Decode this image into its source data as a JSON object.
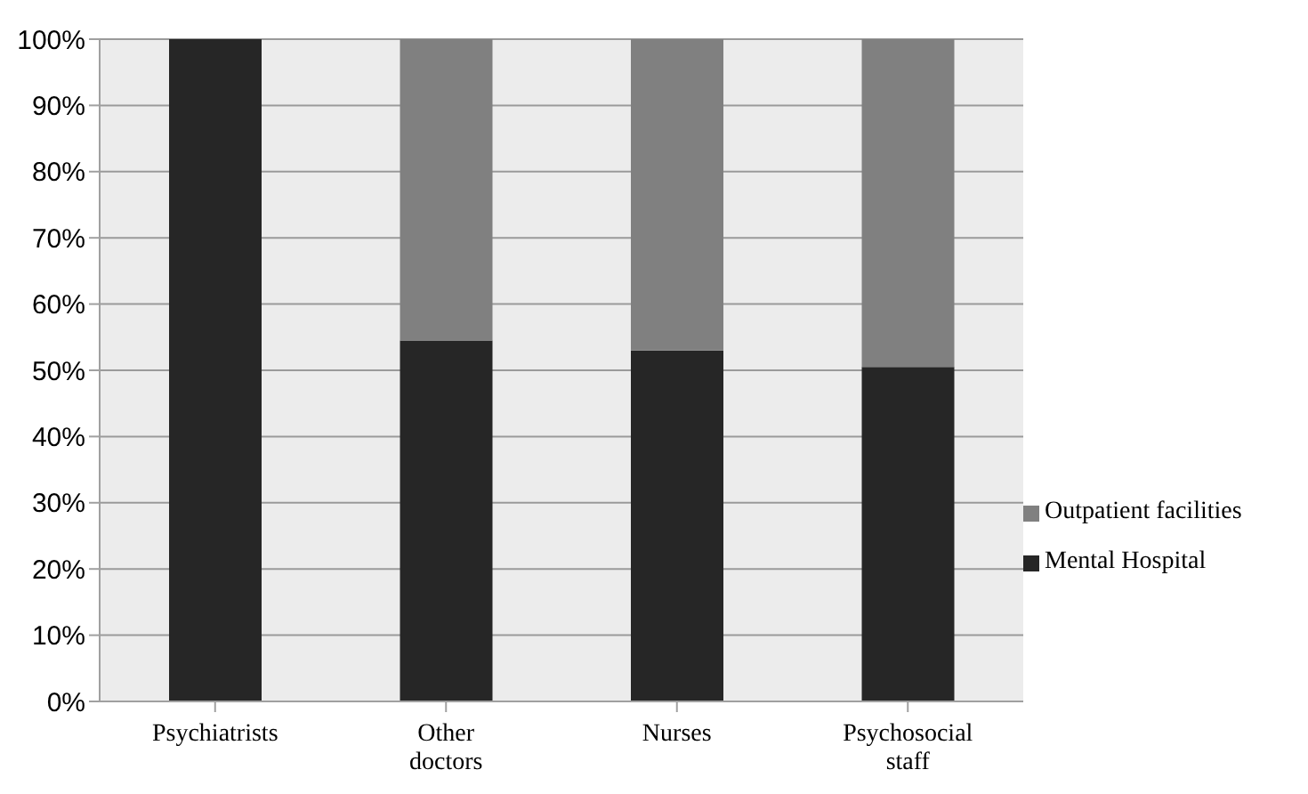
{
  "chart_data": {
    "type": "bar",
    "stacked": true,
    "categories": [
      "Psychiatrists",
      "Other doctors",
      "Nurses",
      "Psychosocial staff"
    ],
    "series": [
      {
        "name": "Mental Hospital",
        "color": "#262626",
        "values": [
          100,
          54.5,
          53,
          50.5
        ]
      },
      {
        "name": "Outpatient facilities",
        "color": "#808080",
        "values": [
          0,
          45.5,
          47,
          49.5
        ]
      }
    ],
    "ylim": [
      0,
      100
    ],
    "yticks": [
      {
        "value": 0,
        "label": "0%"
      },
      {
        "value": 10,
        "label": "10%"
      },
      {
        "value": 20,
        "label": "20%"
      },
      {
        "value": 30,
        "label": "30%"
      },
      {
        "value": 40,
        "label": "40%"
      },
      {
        "value": 50,
        "label": "50%"
      },
      {
        "value": 60,
        "label": "60%"
      },
      {
        "value": 70,
        "label": "70%"
      },
      {
        "value": 80,
        "label": "80%"
      },
      {
        "value": 90,
        "label": "90%"
      },
      {
        "value": 100,
        "label": "100%"
      }
    ],
    "grid": "y",
    "legend": "right"
  }
}
